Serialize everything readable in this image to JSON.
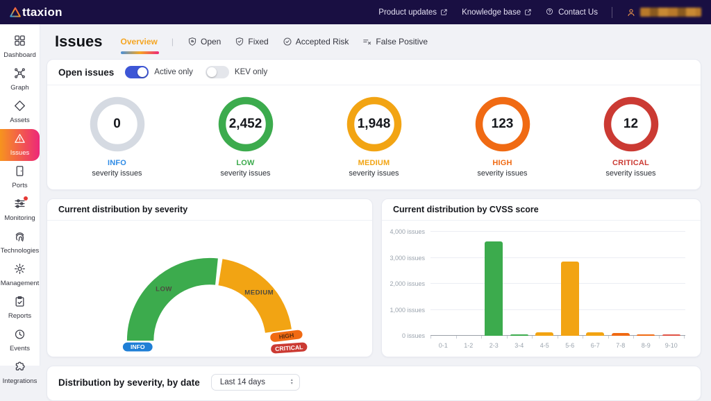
{
  "theme": {
    "nav_bg": "#190F42",
    "active_gradient_from": "#F7941E",
    "active_gradient_to": "#ED2779",
    "tab_underline": [
      "#4A90D9",
      "#F5A623",
      "#ED2779"
    ],
    "toggle_on_color": "#3D56D6",
    "page_bg": "#F1F2F6"
  },
  "topnav": {
    "brand_mark": "A",
    "brand_rest": "ttaxion",
    "links": [
      {
        "id": "product-updates",
        "label": "Product updates",
        "icon": "external-link-icon"
      },
      {
        "id": "knowledge-base",
        "label": "Knowledge base",
        "icon": "external-link-icon"
      },
      {
        "id": "contact-us",
        "label": "Contact Us",
        "icon": "question-circle-icon"
      }
    ],
    "user": {
      "icon": "user-icon",
      "name_redacted": true
    }
  },
  "sidebar": {
    "items": [
      {
        "id": "dashboard",
        "label": "Dashboard",
        "icon": "dashboard-icon",
        "active": false
      },
      {
        "id": "graph",
        "label": "Graph",
        "icon": "graph-icon",
        "active": false
      },
      {
        "id": "assets",
        "label": "Assets",
        "icon": "assets-icon",
        "active": false
      },
      {
        "id": "issues",
        "label": "Issues",
        "icon": "issues-icon",
        "active": true
      },
      {
        "id": "ports",
        "label": "Ports",
        "icon": "ports-icon",
        "active": false
      },
      {
        "id": "monitoring",
        "label": "Monitoring",
        "icon": "monitoring-icon",
        "active": false,
        "badge": true
      },
      {
        "id": "technologies",
        "label": "Technologies",
        "icon": "technologies-icon",
        "active": false
      },
      {
        "id": "management",
        "label": "Management",
        "icon": "management-icon",
        "active": false
      },
      {
        "id": "reports",
        "label": "Reports",
        "icon": "reports-icon",
        "active": false
      },
      {
        "id": "events",
        "label": "Events",
        "icon": "events-icon",
        "active": false
      },
      {
        "id": "integrations",
        "label": "Integrations",
        "icon": "integrations-icon",
        "active": false,
        "bottom": true
      }
    ]
  },
  "page": {
    "title": "Issues"
  },
  "tabs": {
    "separator": "|",
    "items": [
      {
        "id": "overview",
        "label": "Overview",
        "active": true
      },
      {
        "id": "open",
        "label": "Open",
        "icon": "shield-at-icon",
        "active": false
      },
      {
        "id": "fixed",
        "label": "Fixed",
        "icon": "shield-check-icon",
        "active": false
      },
      {
        "id": "accepted-risk",
        "label": "Accepted Risk",
        "icon": "badge-check-icon",
        "active": false
      },
      {
        "id": "false-positive",
        "label": "False Positive",
        "icon": "list-x-icon",
        "active": false
      }
    ]
  },
  "open_issues": {
    "title": "Open issues",
    "toggles": [
      {
        "id": "active-only",
        "label": "Active only",
        "on": true
      },
      {
        "id": "kev-only",
        "label": "KEV only",
        "on": false
      }
    ],
    "stats": [
      {
        "severity": "INFO",
        "value": "0",
        "ring_color": "#D5DAE2",
        "label_color": "#2E8BE6",
        "sublabel": "severity issues"
      },
      {
        "severity": "LOW",
        "value": "2,452",
        "ring_color": "#3CAB4D",
        "label_color": "#3CAB4D",
        "sublabel": "severity issues"
      },
      {
        "severity": "MEDIUM",
        "value": "1,948",
        "ring_color": "#F2A413",
        "label_color": "#F2A413",
        "sublabel": "severity issues"
      },
      {
        "severity": "HIGH",
        "value": "123",
        "ring_color": "#F06A13",
        "label_color": "#F06A13",
        "sublabel": "severity issues"
      },
      {
        "severity": "CRITICAL",
        "value": "12",
        "ring_color": "#CB3A33",
        "label_color": "#CB3A33",
        "sublabel": "severity issues"
      }
    ]
  },
  "chart_data": [
    {
      "type": "pie",
      "variant": "semicircular-donut-gauge",
      "title": "Current distribution by severity",
      "legend_position": "on-segments",
      "segments": [
        {
          "label": "INFO",
          "value": 0,
          "color": "#1F7FD6",
          "render": "pill",
          "text_color": "#FFFFFF"
        },
        {
          "label": "LOW",
          "value": 2452,
          "color": "#3CAB4D",
          "render": "arc",
          "text_color": "#4D4A40"
        },
        {
          "label": "MEDIUM",
          "value": 1948,
          "color": "#F2A413",
          "render": "arc",
          "text_color": "#4D4A40"
        },
        {
          "label": "HIGH",
          "value": 123,
          "color": "#F06A13",
          "render": "pill",
          "text_color": "#5C2E0E"
        },
        {
          "label": "CRITICAL",
          "value": 12,
          "color": "#CB3A33",
          "render": "pill",
          "text_color": "#FFFFFF"
        }
      ]
    },
    {
      "type": "bar",
      "title": "Current distribution by CVSS score",
      "categories": [
        "0-1",
        "1-2",
        "2-3",
        "3-4",
        "4-5",
        "5-6",
        "6-7",
        "7-8",
        "8-9",
        "9-10"
      ],
      "values": [
        0,
        0,
        3620,
        50,
        130,
        2860,
        130,
        115,
        65,
        35
      ],
      "bar_colors": [
        "#3CAB4D",
        "#3CAB4D",
        "#3CAB4D",
        "#3CAB4D",
        "#F2A413",
        "#F2A413",
        "#F2A413",
        "#F06A13",
        "#F06A13",
        "#E05244"
      ],
      "ylim": [
        0,
        4000
      ],
      "ytick_labels": [
        "0 issues",
        "1,000 issues",
        "2,000 issues",
        "3,000 issues",
        "4,000 issues"
      ],
      "grid": true,
      "legend": false
    }
  ],
  "bottom_panel": {
    "title": "Distribution by severity, by date",
    "range_select": {
      "value": "Last 14 days"
    }
  }
}
